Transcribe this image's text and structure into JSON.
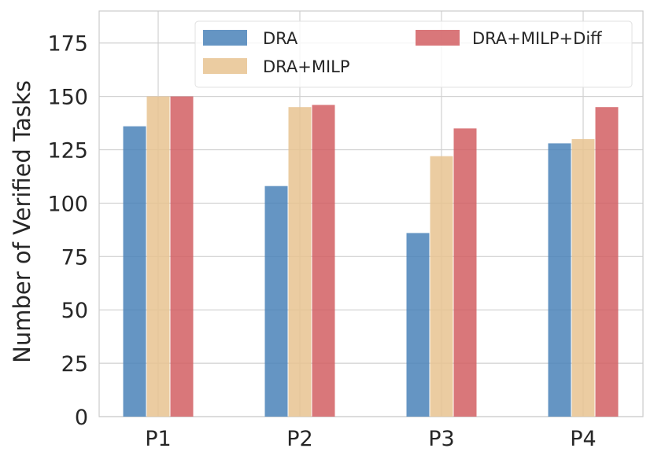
{
  "chart_data": {
    "type": "bar",
    "title": "",
    "xlabel": "",
    "ylabel": "Number of Verified Tasks",
    "categories": [
      "P1",
      "P2",
      "P3",
      "P4"
    ],
    "series": [
      {
        "name": "DRA",
        "values": [
          136,
          108,
          86,
          128
        ],
        "color": "#4a83b8"
      },
      {
        "name": "DRA+MILP",
        "values": [
          150,
          145,
          122,
          130
        ],
        "color": "#e8c391"
      },
      {
        "name": "DRA+MILP+Diff",
        "values": [
          150,
          146,
          135,
          145
        ],
        "color": "#d25f63"
      }
    ],
    "ylim": [
      0,
      190
    ],
    "yticks": [
      0,
      25,
      50,
      75,
      100,
      125,
      150,
      175
    ],
    "grid": true,
    "legend_position": "top-right"
  }
}
